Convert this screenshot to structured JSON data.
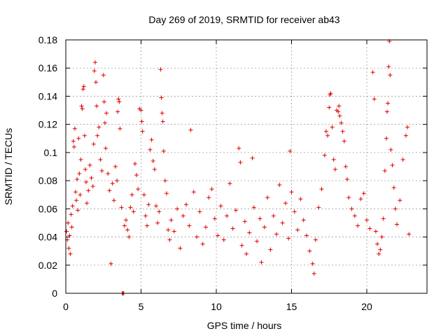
{
  "chart_data": {
    "type": "scatter",
    "title": "Day 269 of 2019, SRMTID for receiver ab43",
    "xlabel": "GPS time / hours",
    "ylabel": "SRMTID / TECUs",
    "xlim": [
      0,
      24
    ],
    "ylim": [
      0,
      0.18
    ],
    "x_ticks": [
      0,
      5,
      10,
      15,
      20
    ],
    "x_tick_labels": [
      "0",
      "5",
      "10",
      "15",
      "20"
    ],
    "y_ticks": [
      0,
      0.02,
      0.04,
      0.06,
      0.08,
      0.1,
      0.12,
      0.14,
      0.16,
      0.18
    ],
    "y_tick_labels": [
      "0",
      "0.02",
      "0.04",
      "0.06",
      "0.08",
      "0.1",
      "0.12",
      "0.14",
      "0.16",
      "0.18"
    ],
    "grid": true,
    "marker": "+",
    "color": "#e00000",
    "series": [
      {
        "name": "SRMTID",
        "points": [
          [
            0.05,
            0.044
          ],
          [
            0.1,
            0.038
          ],
          [
            0.15,
            0.05
          ],
          [
            0.2,
            0.032
          ],
          [
            0.25,
            0.041
          ],
          [
            0.3,
            0.028
          ],
          [
            0.35,
            0.056
          ],
          [
            0.4,
            0.047
          ],
          [
            0.45,
            0.062
          ],
          [
            0.5,
            0.108
          ],
          [
            0.55,
            0.104
          ],
          [
            0.6,
            0.117
          ],
          [
            0.65,
            0.072
          ],
          [
            0.7,
            0.066
          ],
          [
            0.75,
            0.081
          ],
          [
            0.8,
            0.059
          ],
          [
            0.85,
            0.11
          ],
          [
            0.9,
            0.085
          ],
          [
            0.95,
            0.07
          ],
          [
            1.0,
            0.095
          ],
          [
            1.05,
            0.133
          ],
          [
            1.1,
            0.131
          ],
          [
            1.15,
            0.145
          ],
          [
            1.2,
            0.147
          ],
          [
            1.25,
            0.112
          ],
          [
            1.3,
            0.088
          ],
          [
            1.35,
            0.079
          ],
          [
            1.4,
            0.064
          ],
          [
            1.5,
            0.073
          ],
          [
            1.6,
            0.091
          ],
          [
            1.7,
            0.082
          ],
          [
            1.8,
            0.076
          ],
          [
            1.85,
            0.106
          ],
          [
            1.9,
            0.158
          ],
          [
            1.95,
            0.164
          ],
          [
            2.0,
            0.15
          ],
          [
            2.05,
            0.133
          ],
          [
            2.1,
            0.112
          ],
          [
            2.2,
            0.118
          ],
          [
            2.3,
            0.095
          ],
          [
            2.4,
            0.087
          ],
          [
            2.5,
            0.155
          ],
          [
            2.55,
            0.136
          ],
          [
            2.6,
            0.121
          ],
          [
            2.65,
            0.103
          ],
          [
            2.7,
            0.128
          ],
          [
            2.8,
            0.085
          ],
          [
            2.9,
            0.073
          ],
          [
            3.0,
            0.021
          ],
          [
            3.1,
            0.078
          ],
          [
            3.2,
            0.066
          ],
          [
            3.3,
            0.09
          ],
          [
            3.4,
            0.08
          ],
          [
            3.45,
            0.129
          ],
          [
            3.5,
            0.138
          ],
          [
            3.55,
            0.136
          ],
          [
            3.6,
            0.117
          ],
          [
            3.7,
            0.061
          ],
          [
            3.75,
            0.0
          ],
          [
            3.8,
            0.0
          ],
          [
            3.85,
            0.0
          ],
          [
            3.9,
            0.048
          ],
          [
            4.0,
            0.052
          ],
          [
            4.1,
            0.045
          ],
          [
            4.2,
            0.04
          ],
          [
            4.3,
            0.061
          ],
          [
            4.4,
            0.07
          ],
          [
            4.5,
            0.058
          ],
          [
            4.6,
            0.092
          ],
          [
            4.7,
            0.084
          ],
          [
            4.8,
            0.074
          ],
          [
            4.9,
            0.131
          ],
          [
            5.0,
            0.13
          ],
          [
            5.05,
            0.122
          ],
          [
            5.1,
            0.115
          ],
          [
            5.2,
            0.07
          ],
          [
            5.3,
            0.055
          ],
          [
            5.4,
            0.048
          ],
          [
            5.5,
            0.063
          ],
          [
            5.6,
            0.102
          ],
          [
            5.7,
            0.109
          ],
          [
            5.8,
            0.094
          ],
          [
            5.9,
            0.088
          ],
          [
            6.0,
            0.062
          ],
          [
            6.1,
            0.05
          ],
          [
            6.2,
            0.058
          ],
          [
            6.3,
            0.159
          ],
          [
            6.35,
            0.139
          ],
          [
            6.4,
            0.128
          ],
          [
            6.45,
            0.122
          ],
          [
            6.5,
            0.101
          ],
          [
            6.6,
            0.08
          ],
          [
            6.7,
            0.071
          ],
          [
            6.8,
            0.045
          ],
          [
            6.9,
            0.038
          ],
          [
            7.0,
            0.052
          ],
          [
            7.2,
            0.044
          ],
          [
            7.4,
            0.06
          ],
          [
            7.6,
            0.032
          ],
          [
            7.8,
            0.055
          ],
          [
            8.0,
            0.063
          ],
          [
            8.2,
            0.048
          ],
          [
            8.3,
            0.116
          ],
          [
            8.5,
            0.072
          ],
          [
            8.7,
            0.04
          ],
          [
            8.9,
            0.058
          ],
          [
            9.1,
            0.035
          ],
          [
            9.3,
            0.047
          ],
          [
            9.5,
            0.068
          ],
          [
            9.7,
            0.074
          ],
          [
            9.9,
            0.053
          ],
          [
            10.1,
            0.041
          ],
          [
            10.3,
            0.062
          ],
          [
            10.5,
            0.038
          ],
          [
            10.7,
            0.055
          ],
          [
            10.9,
            0.078
          ],
          [
            11.1,
            0.046
          ],
          [
            11.3,
            0.059
          ],
          [
            11.5,
            0.103
          ],
          [
            11.6,
            0.093
          ],
          [
            11.7,
            0.034
          ],
          [
            11.9,
            0.051
          ],
          [
            12.0,
            0.028
          ],
          [
            12.2,
            0.043
          ],
          [
            12.4,
            0.096
          ],
          [
            12.5,
            0.061
          ],
          [
            12.7,
            0.037
          ],
          [
            12.9,
            0.053
          ],
          [
            13.0,
            0.022
          ],
          [
            13.2,
            0.047
          ],
          [
            13.4,
            0.068
          ],
          [
            13.6,
            0.031
          ],
          [
            13.8,
            0.055
          ],
          [
            14.0,
            0.042
          ],
          [
            14.2,
            0.077
          ],
          [
            14.4,
            0.05
          ],
          [
            14.6,
            0.064
          ],
          [
            14.8,
            0.039
          ],
          [
            14.9,
            0.101
          ],
          [
            15.0,
            0.072
          ],
          [
            15.2,
            0.058
          ],
          [
            15.4,
            0.045
          ],
          [
            15.6,
            0.067
          ],
          [
            15.8,
            0.052
          ],
          [
            16.0,
            0.041
          ],
          [
            16.2,
            0.03
          ],
          [
            16.4,
            0.021
          ],
          [
            16.5,
            0.014
          ],
          [
            16.6,
            0.038
          ],
          [
            16.8,
            0.061
          ],
          [
            17.0,
            0.074
          ],
          [
            17.2,
            0.098
          ],
          [
            17.3,
            0.115
          ],
          [
            17.4,
            0.112
          ],
          [
            17.5,
            0.132
          ],
          [
            17.55,
            0.141
          ],
          [
            17.6,
            0.142
          ],
          [
            17.7,
            0.118
          ],
          [
            17.8,
            0.095
          ],
          [
            17.9,
            0.088
          ],
          [
            18.0,
            0.13
          ],
          [
            18.1,
            0.129
          ],
          [
            18.15,
            0.133
          ],
          [
            18.2,
            0.126
          ],
          [
            18.3,
            0.121
          ],
          [
            18.4,
            0.115
          ],
          [
            18.5,
            0.108
          ],
          [
            18.6,
            0.09
          ],
          [
            18.7,
            0.081
          ],
          [
            18.8,
            0.068
          ],
          [
            19.0,
            0.06
          ],
          [
            19.2,
            0.055
          ],
          [
            19.4,
            0.048
          ],
          [
            19.6,
            0.067
          ],
          [
            19.8,
            0.071
          ],
          [
            20.0,
            0.052
          ],
          [
            20.2,
            0.046
          ],
          [
            20.4,
            0.157
          ],
          [
            20.5,
            0.138
          ],
          [
            20.6,
            0.044
          ],
          [
            20.7,
            0.035
          ],
          [
            20.8,
            0.028
          ],
          [
            20.9,
            0.031
          ],
          [
            21.0,
            0.04
          ],
          [
            21.1,
            0.053
          ],
          [
            21.2,
            0.087
          ],
          [
            21.3,
            0.11
          ],
          [
            21.35,
            0.129
          ],
          [
            21.4,
            0.135
          ],
          [
            21.45,
            0.161
          ],
          [
            21.5,
            0.179
          ],
          [
            21.55,
            0.155
          ],
          [
            21.6,
            0.102
          ],
          [
            21.7,
            0.091
          ],
          [
            21.8,
            0.075
          ],
          [
            21.9,
            0.06
          ],
          [
            22.0,
            0.049
          ],
          [
            22.2,
            0.066
          ],
          [
            22.4,
            0.095
          ],
          [
            22.6,
            0.112
          ],
          [
            22.7,
            0.118
          ],
          [
            22.8,
            0.042
          ]
        ]
      }
    ]
  }
}
